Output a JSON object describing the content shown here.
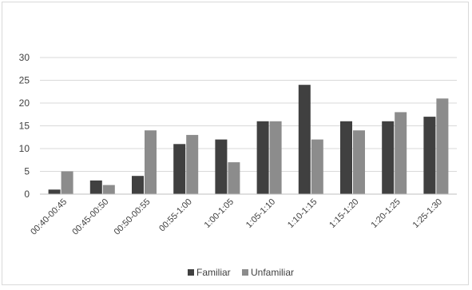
{
  "chart_data": {
    "type": "bar",
    "title": "",
    "xlabel": "",
    "ylabel": "",
    "ylim": [
      0,
      30
    ],
    "yticks": [
      0,
      5,
      10,
      15,
      20,
      25,
      30
    ],
    "grid": true,
    "legend_position": "bottom",
    "categories": [
      "00:40-00:45",
      "00:45-00:50",
      "00:50-00:55",
      "00:55-1:00",
      "1:00-1:05",
      "1:05-1:10",
      "1:10-1:15",
      "1:15-1:20",
      "1:20-1:25",
      "1:25-1:30"
    ],
    "series": [
      {
        "name": "Familiar",
        "color": "#404040",
        "values": [
          1,
          3,
          4,
          11,
          12,
          16,
          24,
          16,
          16,
          17
        ]
      },
      {
        "name": "Unfamiliar",
        "color": "#8c8c8c",
        "values": [
          5,
          2,
          14,
          13,
          7,
          16,
          12,
          14,
          18,
          21
        ]
      }
    ]
  }
}
